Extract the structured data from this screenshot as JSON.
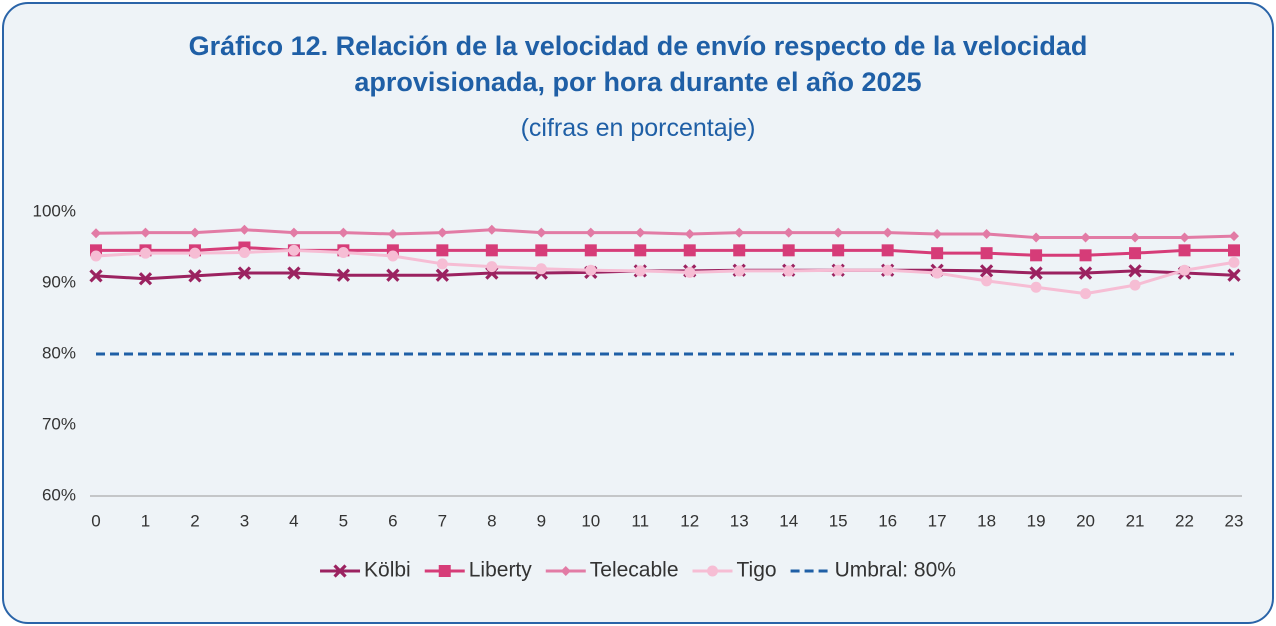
{
  "chart_data": {
    "type": "line",
    "title": "Gráfico 12. Relación de la velocidad de envío respecto de la velocidad aprovisionada, por hora durante el año 2025",
    "subtitle": "(cifras en porcentaje)",
    "categories": [
      "0",
      "1",
      "2",
      "3",
      "4",
      "5",
      "6",
      "7",
      "8",
      "9",
      "10",
      "11",
      "12",
      "13",
      "14",
      "15",
      "16",
      "17",
      "18",
      "19",
      "20",
      "21",
      "22",
      "23"
    ],
    "series": [
      {
        "name": "Kölbi",
        "color": "#9b2260",
        "marker": "x",
        "values": [
          91.0,
          90.6,
          91.0,
          91.4,
          91.4,
          91.1,
          91.1,
          91.1,
          91.4,
          91.4,
          91.5,
          91.7,
          91.7,
          91.8,
          91.8,
          91.8,
          91.8,
          91.8,
          91.7,
          91.4,
          91.4,
          91.7,
          91.4,
          91.1
        ]
      },
      {
        "name": "Liberty",
        "color": "#d63c78",
        "marker": "square",
        "values": [
          94.6,
          94.6,
          94.6,
          95.0,
          94.6,
          94.6,
          94.6,
          94.6,
          94.6,
          94.6,
          94.6,
          94.6,
          94.6,
          94.6,
          94.6,
          94.6,
          94.6,
          94.2,
          94.2,
          93.9,
          93.9,
          94.2,
          94.6,
          94.6
        ]
      },
      {
        "name": "Telecable",
        "color": "#e27ba5",
        "marker": "diamond",
        "values": [
          97.0,
          97.1,
          97.1,
          97.5,
          97.1,
          97.1,
          96.9,
          97.1,
          97.5,
          97.1,
          97.1,
          97.1,
          96.9,
          97.1,
          97.1,
          97.1,
          97.1,
          96.9,
          96.9,
          96.4,
          96.4,
          96.4,
          96.4,
          96.6
        ]
      },
      {
        "name": "Tigo",
        "color": "#f6bdd4",
        "marker": "circle",
        "values": [
          93.8,
          94.2,
          94.2,
          94.3,
          94.6,
          94.3,
          93.8,
          92.7,
          92.3,
          92.0,
          91.8,
          91.7,
          91.5,
          91.7,
          91.7,
          91.8,
          91.8,
          91.4,
          90.3,
          89.4,
          88.5,
          89.7,
          91.8,
          92.9
        ]
      },
      {
        "name": "Umbral: 80%",
        "color": "#1f5fa6",
        "marker": "none",
        "dashed": true,
        "values": [
          80,
          80,
          80,
          80,
          80,
          80,
          80,
          80,
          80,
          80,
          80,
          80,
          80,
          80,
          80,
          80,
          80,
          80,
          80,
          80,
          80,
          80,
          80,
          80
        ]
      }
    ],
    "ylim": [
      60,
      100
    ],
    "yticks": [
      {
        "value": 60,
        "label": "60%"
      },
      {
        "value": 70,
        "label": "70%"
      },
      {
        "value": 80,
        "label": "80%"
      },
      {
        "value": 90,
        "label": "90%"
      },
      {
        "value": 100,
        "label": "100%"
      }
    ],
    "grid": false,
    "legend": "bottom"
  }
}
